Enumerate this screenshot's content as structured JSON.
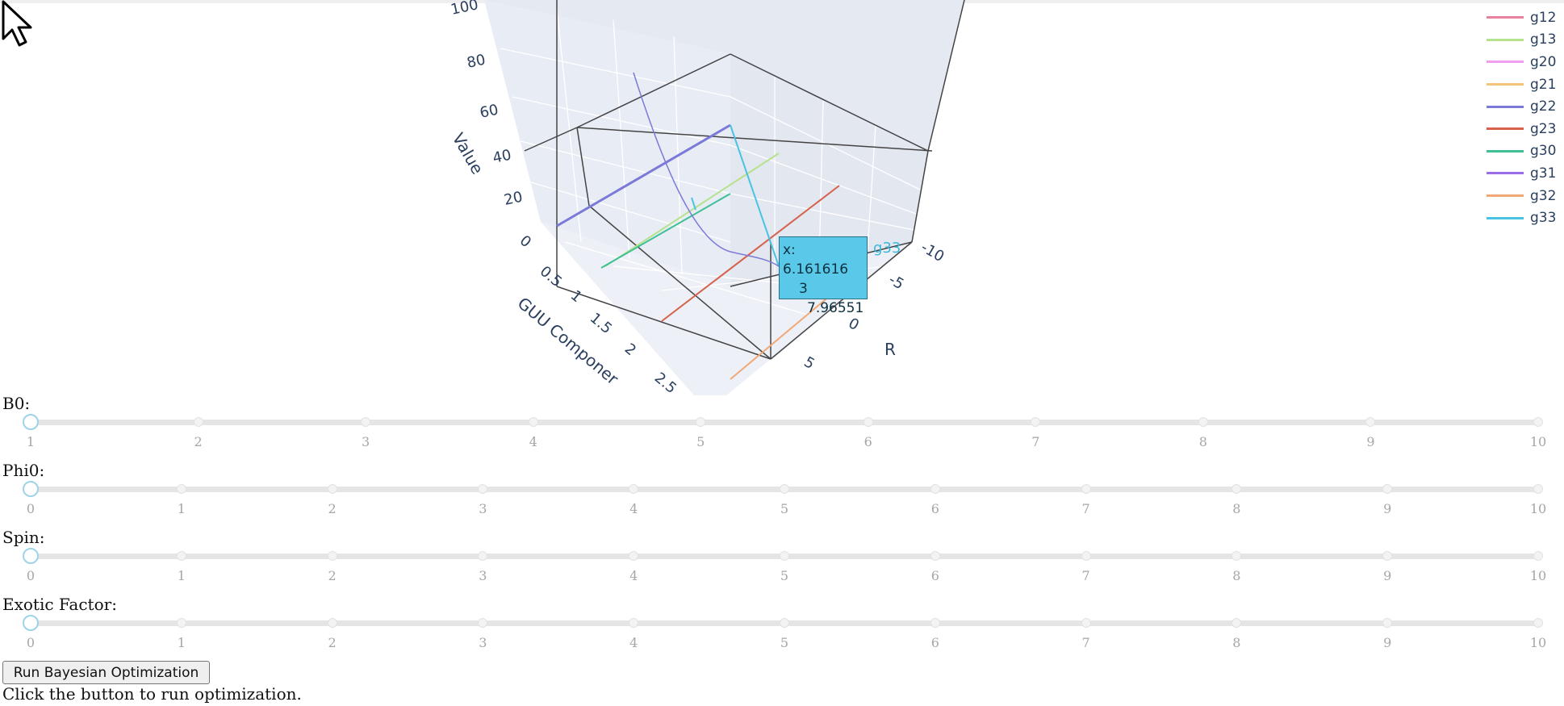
{
  "plot": {
    "z_axis": {
      "title": "Value",
      "ticks": [
        "100",
        "80",
        "60",
        "40",
        "20",
        "0"
      ]
    },
    "x_axis": {
      "title": "GUU Componer",
      "ticks": [
        "0",
        "0.5",
        "1",
        "1.5",
        "2",
        "2.5"
      ]
    },
    "y_axis": {
      "title": "R",
      "ticks": [
        "-10",
        "-5",
        "0",
        "5"
      ]
    },
    "legend": [
      {
        "name": "g12",
        "color": "#e8829c"
      },
      {
        "name": "g13",
        "color": "#b5e28c"
      },
      {
        "name": "g20",
        "color": "#f09ef0"
      },
      {
        "name": "g21",
        "color": "#f3c47a"
      },
      {
        "name": "g22",
        "color": "#7b7ad8"
      },
      {
        "name": "g23",
        "color": "#d6624c"
      },
      {
        "name": "g30",
        "color": "#3fbf96"
      },
      {
        "name": "g31",
        "color": "#9a6de6"
      },
      {
        "name": "g32",
        "color": "#f0a877"
      },
      {
        "name": "g33",
        "color": "#49c3e3"
      }
    ],
    "tooltip": {
      "x_line": "x: 6.161616",
      "y_line": "3",
      "z_line": "7.96551",
      "series": "g33"
    }
  },
  "controls": [
    {
      "label": "B0:",
      "ticks": [
        "1",
        "2",
        "3",
        "4",
        "5",
        "6",
        "7",
        "8",
        "9",
        "10"
      ],
      "value": "1"
    },
    {
      "label": "Phi0:",
      "ticks": [
        "0",
        "1",
        "2",
        "3",
        "4",
        "5",
        "6",
        "7",
        "8",
        "9",
        "10"
      ],
      "value": "0"
    },
    {
      "label": "Spin:",
      "ticks": [
        "0",
        "1",
        "2",
        "3",
        "4",
        "5",
        "6",
        "7",
        "8",
        "9",
        "10"
      ],
      "value": "0"
    },
    {
      "label": "Exotic Factor:",
      "ticks": [
        "0",
        "1",
        "2",
        "3",
        "4",
        "5",
        "6",
        "7",
        "8",
        "9",
        "10"
      ],
      "value": "0"
    }
  ],
  "run_button_label": "Run Bayesian Optimization",
  "status_text": "Click the button to run optimization."
}
